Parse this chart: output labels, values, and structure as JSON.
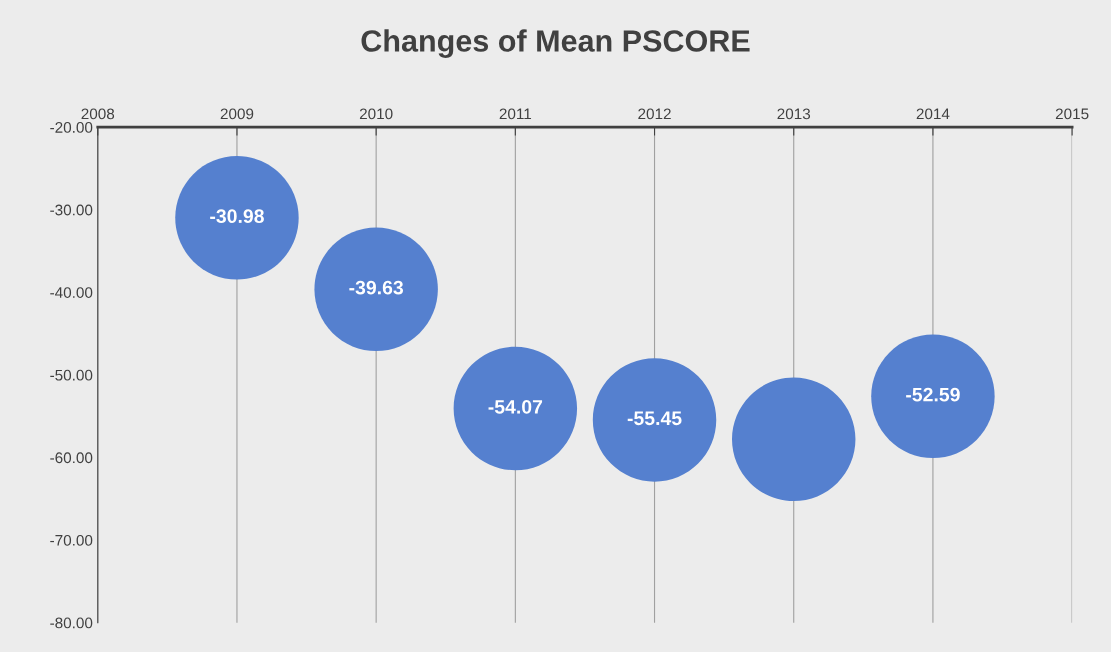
{
  "chart_data": {
    "type": "bubble",
    "title": "Changes of Mean PSCORE",
    "x": [
      2009,
      2010,
      2011,
      2012,
      2013,
      2014
    ],
    "series": [
      {
        "color": "#5580cf",
        "values": [
          -30.98,
          -39.63,
          -54.07,
          -55.45,
          -57.8,
          -52.59
        ],
        "sizes": [
          1,
          1,
          1,
          1,
          1,
          1
        ],
        "value_labels": [
          "-30.98",
          "-39.63",
          "-54.07",
          "-55.45",
          null,
          "-52.59"
        ]
      }
    ],
    "xlim": [
      2008,
      2015
    ],
    "xticks": [
      2008,
      2009,
      2010,
      2011,
      2012,
      2013,
      2014,
      2015
    ],
    "ylim": [
      -80,
      -20
    ],
    "yticks": [
      {
        "value": -80,
        "label": "-80.00"
      },
      {
        "value": -70,
        "label": "-70.00"
      },
      {
        "value": -60,
        "label": "-60.00"
      },
      {
        "value": -50,
        "label": "-50.00"
      },
      {
        "value": -40,
        "label": "-40.00"
      },
      {
        "value": -30,
        "label": "-30.00"
      },
      {
        "value": -20,
        "label": "-20.00"
      }
    ],
    "grid": "x",
    "legend": false
  }
}
